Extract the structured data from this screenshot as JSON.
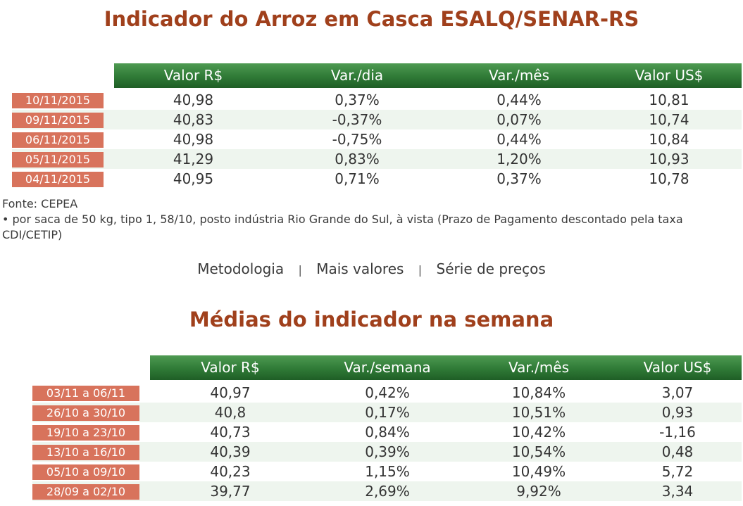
{
  "title1": "Indicador do Arroz em Casca ESALQ/SENAR-RS",
  "table1": {
    "headers": [
      "Valor R$",
      "Var./dia",
      "Var./mês",
      "Valor US$"
    ],
    "rows": [
      {
        "date": "10/11/2015",
        "values": [
          "40,98",
          "0,37%",
          "0,44%",
          "10,81"
        ]
      },
      {
        "date": "09/11/2015",
        "values": [
          "40,83",
          "-0,37%",
          "0,07%",
          "10,74"
        ]
      },
      {
        "date": "06/11/2015",
        "values": [
          "40,98",
          "-0,75%",
          "0,44%",
          "10,84"
        ]
      },
      {
        "date": "05/11/2015",
        "values": [
          "41,29",
          "0,83%",
          "1,20%",
          "10,93"
        ]
      },
      {
        "date": "04/11/2015",
        "values": [
          "40,95",
          "0,71%",
          "0,37%",
          "10,78"
        ]
      }
    ]
  },
  "notes": {
    "source": "Fonte: CEPEA",
    "detail": "• por saca de 50 kg, tipo 1, 58/10, posto indústria Rio Grande do Sul, à vista (Prazo de Pagamento descontado pela taxa CDI/CETIP)"
  },
  "links": {
    "metodologia": "Metodologia",
    "mais_valores": "Mais valores",
    "serie": "Série de preços",
    "separator": "|"
  },
  "title2": "Médias do indicador na semana",
  "table2": {
    "headers": [
      "Valor R$",
      "Var./semana",
      "Var./mês",
      "Valor US$"
    ],
    "rows": [
      {
        "date": "03/11 a 06/11",
        "values": [
          "40,97",
          "0,42%",
          "10,84%",
          "3,07"
        ]
      },
      {
        "date": "26/10 a 30/10",
        "values": [
          "40,8",
          "0,17%",
          "10,51%",
          "0,93"
        ]
      },
      {
        "date": "19/10 a 23/10",
        "values": [
          "40,73",
          "0,84%",
          "10,42%",
          "-1,16"
        ]
      },
      {
        "date": "13/10 a 16/10",
        "values": [
          "40,39",
          "0,39%",
          "10,54%",
          "0,48"
        ]
      },
      {
        "date": "05/10 a 09/10",
        "values": [
          "40,23",
          "1,15%",
          "10,49%",
          "5,72"
        ]
      },
      {
        "date": "28/09 a 02/10",
        "values": [
          "39,77",
          "2,69%",
          "9,92%",
          "3,34"
        ]
      }
    ]
  }
}
